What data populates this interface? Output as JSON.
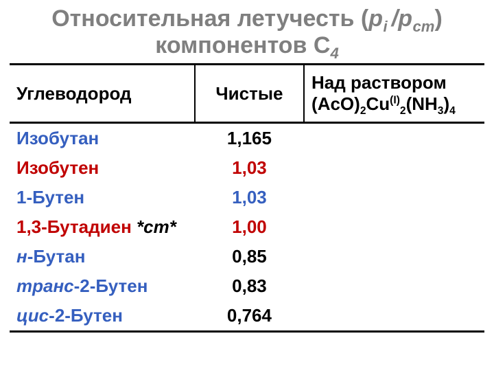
{
  "title": {
    "line1_prefix": "Относительная летучесть (",
    "line1_pi": "p",
    "line1_i": "i ",
    "line1_slash": "/",
    "line1_pst": "p",
    "line1_st": "ст",
    "line1_suffix": ")",
    "line2_prefix": "компонентов С",
    "line2_sub": "4",
    "text_color": "#7f7f7f",
    "fontsize": 34
  },
  "table": {
    "columns": [
      {
        "key": "hydrocarbon",
        "label": "Углеводород",
        "width_pct": 39,
        "align": "left"
      },
      {
        "key": "pure",
        "label": "Чистые",
        "width_pct": 23,
        "align": "center"
      },
      {
        "key": "solution",
        "label_html": "Над раствором (AcO)<sub>2</sub>Cu<sup>(I)</sup><sub>2</sub>(NH<sub>3</sub>)<sub>4</sub>",
        "width_pct": 38,
        "align": "left"
      }
    ],
    "rows": [
      {
        "name_html": "Изобутан",
        "name_color": "#355fbf",
        "pure": "1,165",
        "pure_color": "#000000"
      },
      {
        "name_html": "Изобутен",
        "name_color": "#c00000",
        "pure": "1,03",
        "pure_color": "#c00000"
      },
      {
        "name_html": "1-Бутен",
        "name_color": "#355fbf",
        "pure": "1,03",
        "pure_color": "#355fbf"
      },
      {
        "name_html": "1,3-Бутадиен <span class=\"stnote\">*ст*</span>",
        "name_color": "#c00000",
        "pure": "1,00",
        "pure_color": "#c00000"
      },
      {
        "name_html": "<span class=\"ital\">н</span><span class=\"hyph\">-</span>Бутан",
        "name_color": "#355fbf",
        "pure": "0,85",
        "pure_color": "#000000"
      },
      {
        "name_html": "<span class=\"ital\">транс</span><span class=\"hyph\">-</span>2-Бутен",
        "name_color": "#355fbf",
        "pure": "0,83",
        "pure_color": "#000000"
      },
      {
        "name_html": "<span class=\"ital\">цис</span><span class=\"hyph\">-</span>2-Бутен",
        "name_color": "#355fbf",
        "pure": "0,764",
        "pure_color": "#000000"
      }
    ],
    "border_color": "#000000",
    "header_fontsize": 26,
    "cell_fontsize": 26,
    "background_color": "#ffffff"
  }
}
